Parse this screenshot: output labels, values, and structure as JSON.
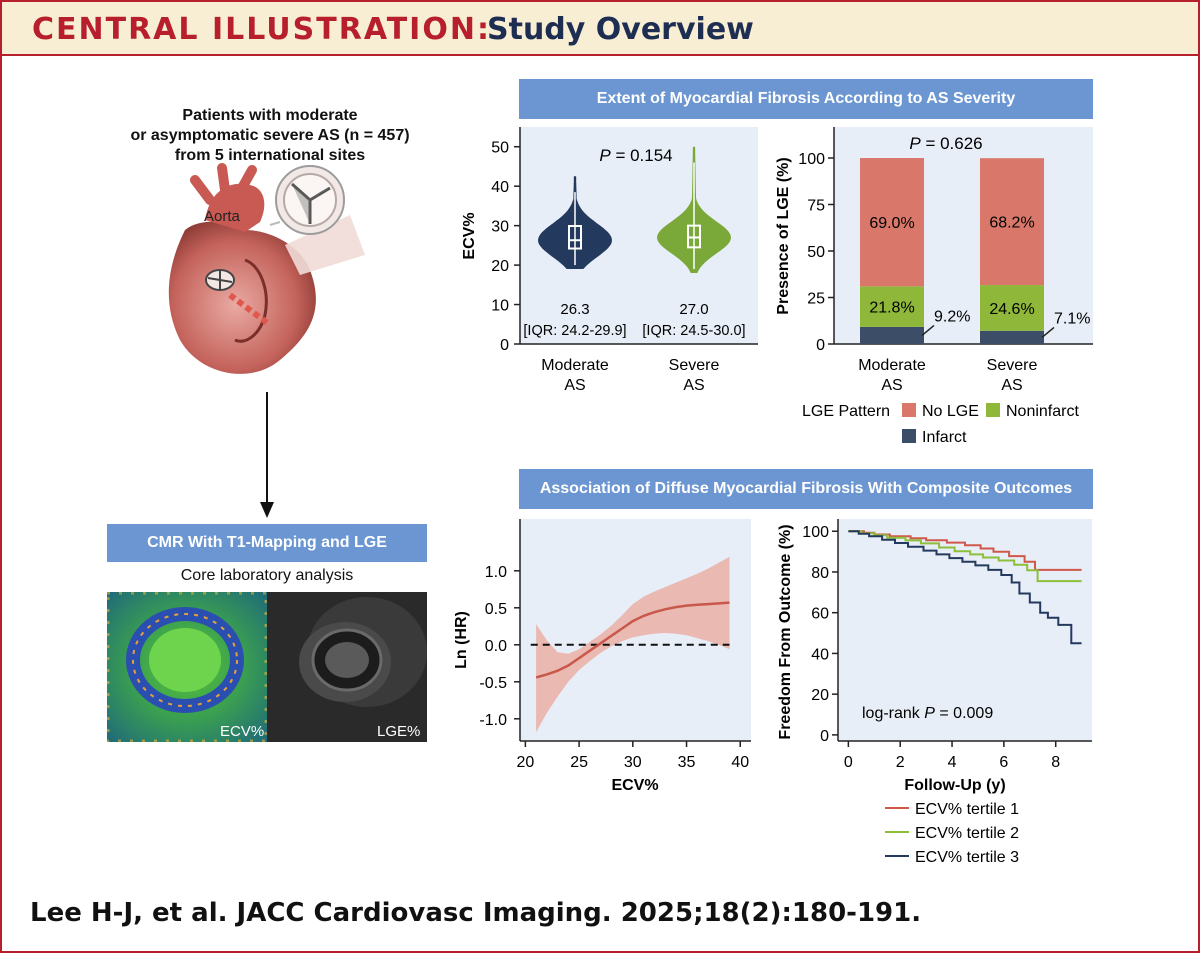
{
  "header": {
    "label": "CENTRAL ILLUSTRATION:",
    "title": "Study Overview"
  },
  "left": {
    "patients": [
      "Patients with moderate",
      "or asymptomatic severe AS (n = 457)",
      "from 5 international sites"
    ],
    "aorta_label": "Aorta",
    "cmr_banner": "CMR With T1-Mapping and LGE",
    "core_text": "Core laboratory analysis",
    "ecv_label": "ECV%",
    "lge_label": "LGE%"
  },
  "top_banner": "Extent of Myocardial Fibrosis According to AS Severity",
  "bottom_banner": "Association of Diffuse Myocardial Fibrosis With Composite Outcomes",
  "citation": "Lee H-J, et al. JACC Cardiovasc Imaging. 2025;18(2):180-191.",
  "colors": {
    "red": "#b81f2d",
    "navy": "#1e2d52",
    "banner": "#6b96d2",
    "panel": "#e8eef8",
    "nolge": "#d9786a",
    "noninfarct": "#8fb83a",
    "infarct": "#3c4d68",
    "violin_mod": "#24395e",
    "violin_sev": "#7aa93a"
  },
  "chart_data": [
    {
      "type": "violin",
      "ylabel": "ECV%",
      "ylim": [
        0,
        55
      ],
      "yticks": [
        0,
        10,
        20,
        30,
        40,
        50
      ],
      "p_label": "P",
      "p_value": "= 0.154",
      "groups": [
        {
          "name": [
            "Moderate",
            "AS"
          ],
          "median": 26.3,
          "q1": 24.2,
          "q3": 29.9,
          "min": 19,
          "max": 42.5,
          "median_label": "26.3",
          "iqr_label": "[IQR: 24.2-29.9]"
        },
        {
          "name": [
            "Severe",
            "AS"
          ],
          "median": 27.0,
          "q1": 24.5,
          "q3": 30.0,
          "min": 18,
          "max": 50,
          "median_label": "27.0",
          "iqr_label": "[IQR: 24.5-30.0]"
        }
      ]
    },
    {
      "type": "bar",
      "stacked": true,
      "ylabel": "Presence of LGE (%)",
      "ylim": [
        0,
        100
      ],
      "yticks": [
        0,
        25,
        50,
        75,
        100
      ],
      "p_label": "P",
      "p_value": "= 0.626",
      "categories": [
        [
          "Moderate",
          "AS"
        ],
        [
          "Severe",
          "AS"
        ]
      ],
      "series": [
        {
          "name": "Infarct",
          "values": [
            9.2,
            7.1
          ],
          "labels": [
            "9.2%",
            "7.1%"
          ]
        },
        {
          "name": "Noninfarct",
          "values": [
            21.8,
            24.6
          ],
          "labels": [
            "21.8%",
            "24.6%"
          ]
        },
        {
          "name": "No LGE",
          "values": [
            69.0,
            68.2
          ],
          "labels": [
            "69.0%",
            "68.2%"
          ]
        }
      ],
      "legend_title": "LGE Pattern"
    },
    {
      "type": "line",
      "xlabel": "ECV%",
      "ylabel": "Ln (HR)",
      "xlim": [
        19.5,
        41
      ],
      "ylim": [
        -1.3,
        1.7
      ],
      "xticks": [
        20,
        25,
        30,
        35,
        40
      ],
      "yticks": [
        -1.0,
        -0.5,
        0.0,
        0.5,
        1.0
      ],
      "ytick_labels": [
        "-1.0",
        "-0.5",
        "0.0",
        "0.5",
        "1.0"
      ],
      "x": [
        21,
        22,
        23,
        24,
        25,
        26,
        27,
        28,
        29,
        30,
        31,
        32,
        33,
        34,
        35,
        36,
        37,
        38,
        39
      ],
      "y": [
        -0.44,
        -0.4,
        -0.35,
        -0.28,
        -0.18,
        -0.08,
        0.02,
        0.12,
        0.22,
        0.32,
        0.39,
        0.44,
        0.48,
        0.51,
        0.53,
        0.54,
        0.55,
        0.56,
        0.57
      ],
      "upper": [
        0.28,
        0.06,
        -0.1,
        -0.12,
        -0.06,
        0.04,
        0.14,
        0.26,
        0.4,
        0.55,
        0.65,
        0.72,
        0.78,
        0.84,
        0.9,
        0.96,
        1.03,
        1.11,
        1.19
      ],
      "lower": [
        -1.18,
        -0.92,
        -0.7,
        -0.5,
        -0.34,
        -0.22,
        -0.11,
        -0.02,
        0.05,
        0.1,
        0.13,
        0.15,
        0.16,
        0.15,
        0.13,
        0.09,
        0.05,
        0.0,
        -0.06
      ],
      "reference": 0
    },
    {
      "type": "line",
      "step": true,
      "xlabel": "Follow-Up (y)",
      "ylabel": "Freedom From Outcome (%)",
      "xlim": [
        -0.4,
        9.4
      ],
      "ylim": [
        -3,
        106
      ],
      "xticks": [
        0,
        2,
        4,
        6,
        8
      ],
      "yticks": [
        0,
        20,
        40,
        60,
        80,
        100
      ],
      "annotation_prefix": "log-rank",
      "annotation_p": "P",
      "annotation_value": "= 0.009",
      "series": [
        {
          "name": "ECV% tertile 1",
          "x": [
            0,
            0.6,
            1.0,
            1.6,
            2.4,
            3.0,
            3.8,
            4.5,
            5.1,
            5.6,
            6.2,
            6.8,
            7.2,
            9.0
          ],
          "y": [
            100,
            99.2,
            98.4,
            97.5,
            96.5,
            95.6,
            94.4,
            93.1,
            91.5,
            89.9,
            87.8,
            85.0,
            81.0,
            81.0
          ]
        },
        {
          "name": "ECV% tertile 2",
          "x": [
            0,
            0.5,
            1.0,
            1.5,
            2.2,
            2.8,
            3.5,
            4.1,
            4.7,
            5.2,
            5.8,
            6.4,
            6.9,
            7.3,
            9.0
          ],
          "y": [
            100,
            99.0,
            98.0,
            96.8,
            95.5,
            94.0,
            92.0,
            90.2,
            88.6,
            87.1,
            85.6,
            83.5,
            80.8,
            75.5,
            75.5
          ]
        },
        {
          "name": "ECV% tertile 3",
          "x": [
            0,
            0.4,
            0.8,
            1.3,
            1.8,
            2.3,
            2.9,
            3.4,
            3.9,
            4.4,
            4.9,
            5.4,
            5.9,
            6.3,
            6.6,
            7.0,
            7.4,
            7.7,
            8.1,
            8.6,
            9.0
          ],
          "y": [
            100,
            98.8,
            97.5,
            95.8,
            94.2,
            92.4,
            90.5,
            88.6,
            86.8,
            85.0,
            83.2,
            81.0,
            78.5,
            74.8,
            69.4,
            65.0,
            60.0,
            57.5,
            54.0,
            45.0,
            45.0
          ]
        }
      ]
    }
  ]
}
